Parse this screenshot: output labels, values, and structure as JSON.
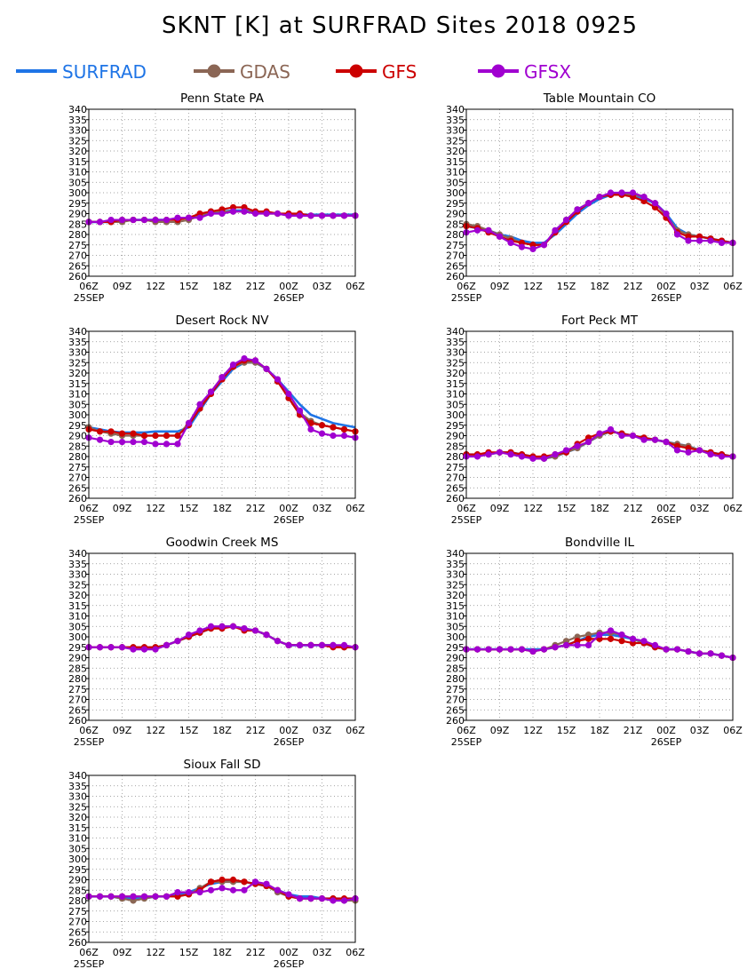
{
  "title": "SKNT [K] at SURFRAD Sites     2018 0925",
  "legend": [
    {
      "name": "SURFRAD",
      "color": "#1e74e6",
      "marker": "none"
    },
    {
      "name": "GDAS",
      "color": "#8b6655",
      "marker": "circle"
    },
    {
      "name": "GFS",
      "color": "#cc0000",
      "marker": "circle"
    },
    {
      "name": "GFSX",
      "color": "#a000d0",
      "marker": "circle"
    }
  ],
  "axes": {
    "y_ticks": [
      260,
      265,
      270,
      275,
      280,
      285,
      290,
      295,
      300,
      305,
      310,
      315,
      320,
      325,
      330,
      335,
      340
    ],
    "ylim": [
      260,
      340
    ],
    "x_ticks": [
      "06Z",
      "09Z",
      "12Z",
      "15Z",
      "18Z",
      "21Z",
      "00Z",
      "03Z",
      "06Z"
    ],
    "xlim": [
      0,
      24
    ],
    "date_labels": [
      {
        "label": "25SEP",
        "at": 0
      },
      {
        "label": "26SEP",
        "at": 18
      }
    ],
    "grid": "dotted"
  },
  "chart_data": [
    {
      "type": "line",
      "title": "Penn State PA",
      "x": [
        0,
        1,
        2,
        3,
        4,
        5,
        6,
        7,
        8,
        9,
        10,
        11,
        12,
        13,
        14,
        15,
        16,
        17,
        18,
        19,
        20,
        21,
        22,
        23,
        24
      ],
      "series": [
        {
          "name": "SURFRAD",
          "values": [
            286,
            286,
            286,
            286.5,
            287,
            287,
            287,
            287,
            287.5,
            288,
            289,
            290.5,
            291,
            291.5,
            291.5,
            291,
            290.5,
            290,
            289.5,
            289.5,
            289.5,
            289.5,
            289.5,
            289.5,
            289.5
          ]
        },
        {
          "name": "GDAS",
          "values": [
            286,
            286,
            286,
            286,
            287,
            287,
            286,
            286,
            286,
            287,
            289,
            291,
            291,
            291,
            291,
            291,
            290,
            290,
            289,
            289,
            289,
            289,
            289,
            289,
            289
          ]
        },
        {
          "name": "GFS",
          "values": [
            286,
            286,
            286,
            287,
            287,
            287,
            287,
            287,
            287,
            288,
            290,
            291,
            292,
            293,
            293,
            291,
            291,
            290,
            290,
            290,
            289,
            289,
            289,
            289,
            289
          ]
        },
        {
          "name": "GFSX",
          "values": [
            286,
            286,
            287,
            287,
            287,
            287,
            287,
            287,
            288,
            288,
            288,
            290,
            290,
            291,
            291,
            290,
            290,
            290,
            289,
            289,
            289,
            289,
            289,
            289,
            289
          ]
        }
      ]
    },
    {
      "type": "line",
      "title": "Table Mountain CO",
      "x": [
        0,
        1,
        2,
        3,
        4,
        5,
        6,
        7,
        8,
        9,
        10,
        11,
        12,
        13,
        14,
        15,
        16,
        17,
        18,
        19,
        20,
        21,
        22,
        23,
        24
      ],
      "series": [
        {
          "name": "SURFRAD",
          "values": [
            284,
            283,
            282,
            280,
            279,
            277,
            276,
            276,
            280,
            285,
            290,
            294,
            297,
            299,
            299.5,
            299,
            297,
            295,
            290,
            283,
            280,
            279,
            278,
            277,
            276
          ]
        },
        {
          "name": "GDAS",
          "values": [
            285,
            284,
            282,
            280,
            278,
            276,
            275,
            275,
            281,
            287,
            292,
            295,
            298,
            299,
            300,
            299,
            298,
            295,
            289,
            282,
            280,
            279,
            278,
            277,
            276
          ]
        },
        {
          "name": "GFS",
          "values": [
            284,
            283,
            281,
            279,
            277,
            276,
            275,
            275,
            281,
            286,
            291,
            295,
            298,
            299,
            299,
            298,
            296,
            293,
            288,
            281,
            279,
            279,
            278,
            277,
            276
          ]
        },
        {
          "name": "GFSX",
          "values": [
            281,
            282,
            282,
            279,
            276,
            274,
            273,
            275,
            282,
            287,
            292,
            295,
            298,
            300,
            300,
            300,
            298,
            295,
            290,
            280,
            277,
            277,
            277,
            276,
            276
          ]
        }
      ]
    },
    {
      "type": "line",
      "title": "Desert Rock NV",
      "x": [
        0,
        1,
        2,
        3,
        4,
        5,
        6,
        7,
        8,
        9,
        10,
        11,
        12,
        13,
        14,
        15,
        16,
        17,
        18,
        19,
        20,
        21,
        22,
        23,
        24
      ],
      "series": [
        {
          "name": "SURFRAD",
          "values": [
            294,
            293,
            292,
            291.5,
            291.5,
            291.5,
            292,
            292,
            292,
            294,
            302,
            310,
            316,
            322,
            325,
            325,
            322,
            317,
            311,
            305,
            300,
            298,
            296,
            295,
            294
          ]
        },
        {
          "name": "GDAS",
          "values": [
            294,
            292,
            291,
            290,
            290,
            290,
            290,
            290,
            290,
            296,
            303,
            311,
            318,
            323,
            325,
            325,
            322,
            316,
            308,
            301,
            297,
            295,
            294,
            293,
            292
          ]
        },
        {
          "name": "GFS",
          "values": [
            293,
            292,
            292,
            291,
            291,
            290,
            290,
            290,
            290,
            295,
            303,
            310,
            317,
            323,
            326,
            326,
            322,
            316,
            308,
            300,
            296,
            295,
            294,
            293,
            292
          ]
        },
        {
          "name": "GFSX",
          "values": [
            289,
            288,
            287,
            287,
            287,
            287,
            286,
            286,
            286,
            296,
            305,
            311,
            318,
            324,
            327,
            326,
            322,
            317,
            310,
            302,
            293,
            291,
            290,
            290,
            289
          ]
        }
      ]
    },
    {
      "type": "line",
      "title": "Fort Peck MT",
      "x": [
        0,
        1,
        2,
        3,
        4,
        5,
        6,
        7,
        8,
        9,
        10,
        11,
        12,
        13,
        14,
        15,
        16,
        17,
        18,
        19,
        20,
        21,
        22,
        23,
        24
      ],
      "series": [
        {
          "name": "SURFRAD",
          "values": [
            281,
            281,
            281,
            282,
            282,
            281,
            280,
            279,
            280,
            282,
            284,
            287,
            290,
            292,
            291,
            290,
            289,
            288,
            287,
            286,
            285,
            283,
            282,
            281,
            280
          ]
        },
        {
          "name": "GDAS",
          "values": [
            281,
            281,
            281,
            282,
            282,
            281,
            280,
            279,
            280,
            282,
            284,
            287,
            290,
            292,
            291,
            290,
            289,
            288,
            287,
            286,
            285,
            283,
            282,
            281,
            280
          ]
        },
        {
          "name": "GFS",
          "values": [
            281,
            281,
            282,
            282,
            282,
            281,
            280,
            280,
            281,
            282,
            286,
            289,
            291,
            292,
            291,
            290,
            289,
            288,
            287,
            285,
            284,
            283,
            282,
            281,
            280
          ]
        },
        {
          "name": "GFSX",
          "values": [
            280,
            280,
            281,
            282,
            281,
            280,
            279,
            279,
            281,
            283,
            285,
            287,
            291,
            293,
            290,
            290,
            288,
            288,
            287,
            283,
            282,
            283,
            281,
            280,
            280
          ]
        }
      ]
    },
    {
      "type": "line",
      "title": "Goodwin Creek MS",
      "x": [
        0,
        1,
        2,
        3,
        4,
        5,
        6,
        7,
        8,
        9,
        10,
        11,
        12,
        13,
        14,
        15,
        16,
        17,
        18,
        19,
        20,
        21,
        22,
        23,
        24
      ],
      "series": [
        {
          "name": "SURFRAD",
          "values": [
            295,
            295,
            295,
            295,
            295,
            295,
            295,
            296,
            298,
            300,
            302,
            304,
            305,
            305,
            304,
            303,
            301,
            298,
            296,
            296,
            296,
            296,
            296,
            295,
            295
          ]
        },
        {
          "name": "GDAS",
          "values": [
            295,
            295,
            295,
            295,
            295,
            295,
            295,
            296,
            298,
            300,
            302,
            304,
            305,
            305,
            304,
            303,
            301,
            298,
            296,
            296,
            296,
            296,
            296,
            295,
            295
          ]
        },
        {
          "name": "GFS",
          "values": [
            295,
            295,
            295,
            295,
            295,
            295,
            295,
            296,
            298,
            300,
            302,
            304,
            304,
            305,
            303,
            303,
            301,
            298,
            296,
            296,
            296,
            296,
            295,
            295,
            295
          ]
        },
        {
          "name": "GFSX",
          "values": [
            295,
            295,
            295,
            295,
            294,
            294,
            294,
            296,
            298,
            301,
            303,
            305,
            305,
            305,
            304,
            303,
            301,
            298,
            296,
            296,
            296,
            296,
            296,
            296,
            295
          ]
        }
      ]
    },
    {
      "type": "line",
      "title": "Bondville IL",
      "x": [
        0,
        1,
        2,
        3,
        4,
        5,
        6,
        7,
        8,
        9,
        10,
        11,
        12,
        13,
        14,
        15,
        16,
        17,
        18,
        19,
        20,
        21,
        22,
        23,
        24
      ],
      "series": [
        {
          "name": "SURFRAD",
          "values": [
            294,
            294,
            294,
            294,
            294,
            294,
            294,
            294,
            295,
            296,
            298,
            300,
            301,
            301,
            300,
            299,
            297,
            295,
            294,
            294,
            293,
            292,
            292,
            291,
            290
          ]
        },
        {
          "name": "GDAS",
          "values": [
            294,
            294,
            294,
            294,
            294,
            294,
            293,
            294,
            296,
            298,
            300,
            301,
            302,
            302,
            301,
            299,
            297,
            295,
            294,
            294,
            293,
            292,
            292,
            291,
            290
          ]
        },
        {
          "name": "GFS",
          "values": [
            294,
            294,
            294,
            294,
            294,
            294,
            293,
            294,
            295,
            296,
            298,
            299,
            299,
            299,
            298,
            297,
            297,
            295,
            294,
            294,
            293,
            292,
            292,
            291,
            290
          ]
        },
        {
          "name": "GFSX",
          "values": [
            294,
            294,
            294,
            294,
            294,
            294,
            293,
            294,
            295,
            296,
            296,
            296,
            301,
            303,
            301,
            299,
            298,
            296,
            294,
            294,
            293,
            292,
            292,
            291,
            290
          ]
        }
      ]
    },
    {
      "type": "line",
      "title": "Sioux Fall SD",
      "x": [
        0,
        1,
        2,
        3,
        4,
        5,
        6,
        7,
        8,
        9,
        10,
        11,
        12,
        13,
        14,
        15,
        16,
        17,
        18,
        19,
        20,
        21,
        22,
        23,
        24
      ],
      "series": [
        {
          "name": "SURFRAD",
          "values": [
            282,
            282,
            282,
            281,
            281,
            281,
            282,
            282,
            283,
            284,
            286,
            288,
            289,
            289,
            289,
            288,
            287,
            285,
            283,
            282,
            282,
            281,
            281,
            281,
            281
          ]
        },
        {
          "name": "GDAS",
          "values": [
            282,
            282,
            282,
            281,
            280,
            281,
            282,
            282,
            282,
            283,
            286,
            289,
            289,
            289,
            289,
            288,
            287,
            284,
            282,
            281,
            281,
            281,
            281,
            280,
            280
          ]
        },
        {
          "name": "GFS",
          "values": [
            282,
            282,
            282,
            282,
            282,
            282,
            282,
            282,
            282,
            283,
            285,
            289,
            290,
            290,
            289,
            288,
            287,
            285,
            282,
            281,
            281,
            281,
            281,
            281,
            281
          ]
        },
        {
          "name": "GFSX",
          "values": [
            282,
            282,
            282,
            282,
            282,
            282,
            282,
            282,
            284,
            284,
            284,
            285,
            286,
            285,
            285,
            289,
            288,
            285,
            283,
            281,
            281,
            281,
            280,
            280,
            281
          ]
        }
      ]
    }
  ]
}
